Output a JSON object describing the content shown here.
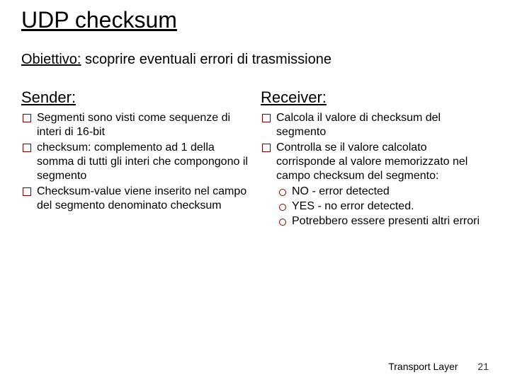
{
  "title": "UDP checksum",
  "objective_label": "Obiettivo:",
  "objective_text": " scoprire eventuali errori di trasmissione",
  "sender": {
    "header": "Sender:",
    "items": [
      "Segmenti sono visti come sequenze di interi di 16-bit",
      "checksum: complemento ad 1 della somma di tutti gli interi che compongono il segmento",
      "Checksum-value viene inserito nel campo del segmento denominato checksum"
    ]
  },
  "receiver": {
    "header": "Receiver:",
    "items": [
      {
        "text": "Calcola il valore di checksum del segmento"
      },
      {
        "text": "Controlla se il valore calcolato corrisponde al valore memorizzato nel campo checksum del segmento:",
        "subitems": [
          "NO - error detected",
          "YES - no error detected.",
          "Potrebbero essere presenti altri errori"
        ]
      }
    ]
  },
  "footer": {
    "label": "Transport Layer",
    "page": "21"
  },
  "colors": {
    "bullet_border": "#800000",
    "text": "#000000",
    "background": "#ffffff"
  }
}
